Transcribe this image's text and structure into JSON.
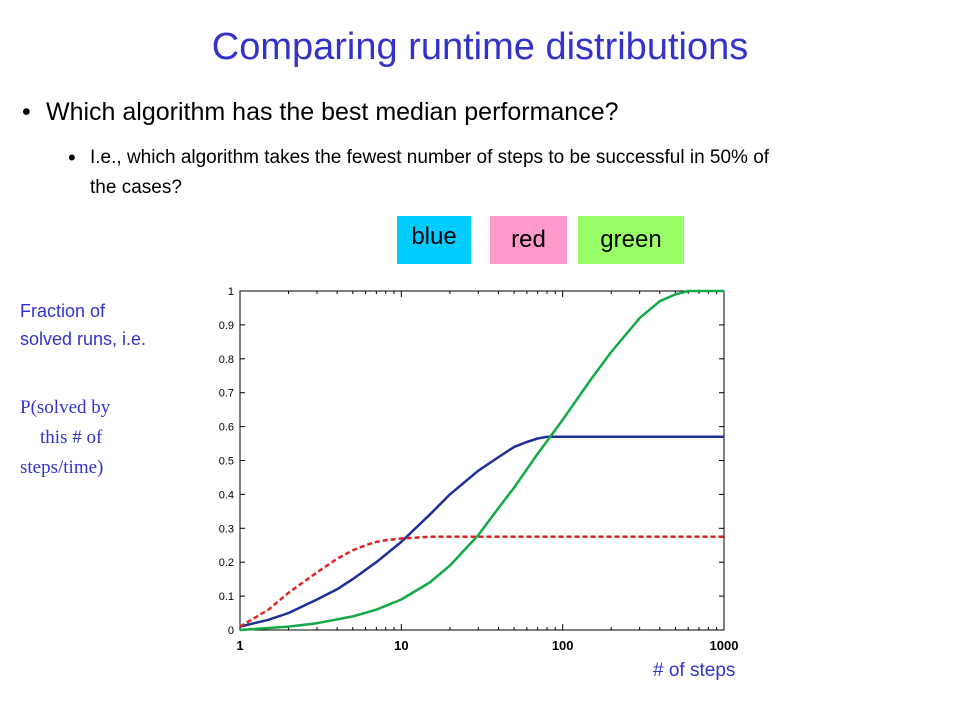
{
  "title": "Comparing runtime distributions",
  "bullets": [
    "Which algorithm has the best median performance?",
    "I.e., which algorithm takes the fewest number of steps to be successful in 50% of the cases?"
  ],
  "bullet_symbol": "•",
  "legend": [
    {
      "label": "blue",
      "color": "#00ccff"
    },
    {
      "label": "red",
      "color": "#ff99cc"
    },
    {
      "label": "green",
      "color": "#99ff66"
    }
  ],
  "ylabel_lines": [
    "Fraction of",
    "solved runs, i.e."
  ],
  "yformula_lines": [
    "P(solved by",
    "this # of",
    "steps/time)"
  ],
  "xlabel": "# of steps",
  "chart_data": {
    "type": "line",
    "x_scale": "log",
    "xlim": [
      1,
      1000
    ],
    "ylim": [
      0,
      1
    ],
    "grid": false,
    "x_ticks": [
      1,
      10,
      100,
      1000
    ],
    "x_tick_labels": [
      "1",
      "10",
      "100",
      "1000"
    ],
    "y_ticks": [
      0,
      0.1,
      0.2,
      0.3,
      0.4,
      0.5,
      0.6,
      0.7,
      0.8,
      0.9,
      1
    ],
    "y_tick_labels": [
      "0",
      "0.1",
      "0.2",
      "0.3",
      "0.4",
      "0.5",
      "0.6",
      "0.7",
      "0.8",
      "0.9",
      "1"
    ],
    "series": [
      {
        "color": "#1f2f9a",
        "dash": "solid",
        "x": [
          1,
          1.5,
          2,
          3,
          4,
          5,
          7,
          10,
          15,
          20,
          30,
          40,
          50,
          60,
          70,
          80,
          100,
          200,
          500,
          1000
        ],
        "y": [
          0.01,
          0.03,
          0.05,
          0.09,
          0.12,
          0.15,
          0.2,
          0.26,
          0.34,
          0.4,
          0.47,
          0.51,
          0.54,
          0.555,
          0.565,
          0.57,
          0.57,
          0.57,
          0.57,
          0.57
        ]
      },
      {
        "color": "#dd2222",
        "dash": "dashed",
        "x": [
          1,
          1.5,
          2,
          3,
          4,
          5,
          6,
          7,
          8,
          10,
          15,
          20,
          30,
          50,
          100,
          1000
        ],
        "y": [
          0.01,
          0.06,
          0.11,
          0.17,
          0.21,
          0.235,
          0.25,
          0.26,
          0.265,
          0.27,
          0.275,
          0.275,
          0.275,
          0.275,
          0.275,
          0.275
        ]
      },
      {
        "color": "#11aa44",
        "dash": "solid",
        "x": [
          1,
          2,
          3,
          5,
          7,
          10,
          15,
          20,
          30,
          40,
          50,
          70,
          100,
          150,
          200,
          300,
          400,
          500,
          600,
          700,
          1000
        ],
        "y": [
          0.0,
          0.01,
          0.02,
          0.04,
          0.06,
          0.09,
          0.14,
          0.19,
          0.28,
          0.36,
          0.42,
          0.52,
          0.62,
          0.74,
          0.82,
          0.92,
          0.97,
          0.99,
          1.0,
          1.0,
          1.0
        ]
      }
    ]
  }
}
